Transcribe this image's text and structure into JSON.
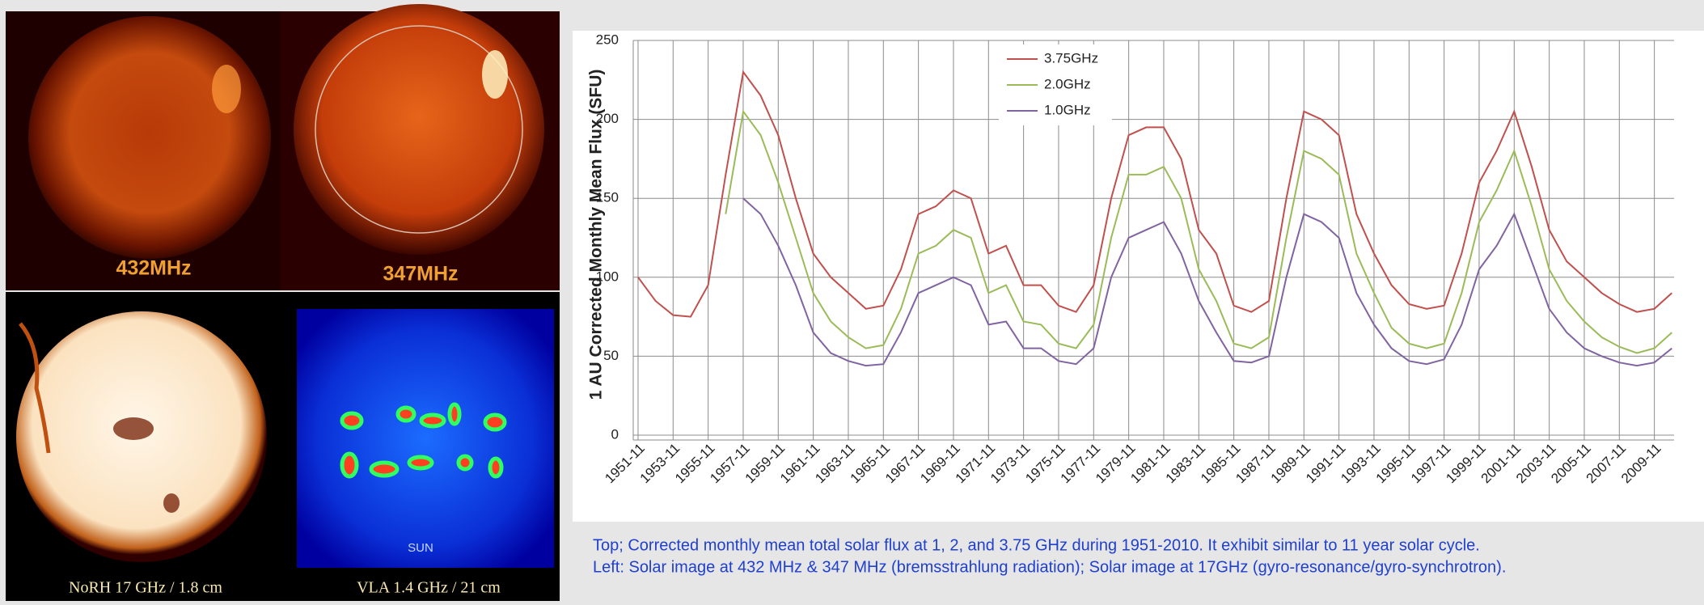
{
  "chart_data": {
    "type": "line",
    "y_label": "1 AU Corrected Monthly Mean Flux (SFU)",
    "x": [
      1951.875,
      1952.875,
      1953.875,
      1954.875,
      1955.875,
      1956.875,
      1957.875,
      1958.875,
      1959.875,
      1960.875,
      1961.875,
      1962.875,
      1963.875,
      1964.875,
      1965.875,
      1966.875,
      1967.875,
      1968.875,
      1969.875,
      1970.875,
      1971.875,
      1972.875,
      1973.875,
      1974.875,
      1975.875,
      1976.875,
      1977.875,
      1978.875,
      1979.875,
      1980.875,
      1981.875,
      1982.875,
      1983.875,
      1984.875,
      1985.875,
      1986.875,
      1987.875,
      1988.875,
      1989.875,
      1990.875,
      1991.875,
      1992.875,
      1993.875,
      1994.875,
      1995.875,
      1996.875,
      1997.875,
      1998.875,
      1999.875,
      2000.875,
      2001.875,
      2002.875,
      2003.875,
      2004.875,
      2005.875,
      2006.875,
      2007.875,
      2008.875,
      2009.875,
      2010.875
    ],
    "series": [
      {
        "name": "3.75GHz",
        "color": "#c0504d",
        "values": [
          100,
          85,
          76,
          75,
          95,
          165,
          230,
          215,
          190,
          150,
          115,
          100,
          90,
          80,
          82,
          105,
          140,
          145,
          155,
          150,
          115,
          120,
          95,
          95,
          82,
          78,
          95,
          150,
          190,
          195,
          195,
          175,
          130,
          115,
          82,
          78,
          85,
          150,
          205,
          200,
          190,
          140,
          115,
          95,
          83,
          80,
          82,
          115,
          160,
          180,
          205,
          170,
          130,
          110,
          100,
          90,
          83,
          78,
          80,
          90
        ]
      },
      {
        "name": "2.0GHz",
        "color": "#9bbb59",
        "values": [
          null,
          null,
          null,
          null,
          null,
          140,
          205,
          190,
          160,
          125,
          90,
          72,
          62,
          55,
          57,
          80,
          115,
          120,
          130,
          125,
          90,
          95,
          72,
          70,
          58,
          55,
          70,
          125,
          165,
          165,
          170,
          150,
          105,
          85,
          58,
          55,
          62,
          125,
          180,
          175,
          165,
          115,
          90,
          68,
          58,
          55,
          58,
          90,
          135,
          155,
          180,
          145,
          105,
          85,
          72,
          62,
          56,
          52,
          55,
          65
        ]
      },
      {
        "name": "1.0GHz",
        "color": "#8064a2",
        "values": [
          null,
          null,
          null,
          null,
          null,
          null,
          150,
          140,
          120,
          95,
          65,
          52,
          47,
          44,
          45,
          65,
          90,
          95,
          100,
          95,
          70,
          72,
          55,
          55,
          47,
          45,
          55,
          100,
          125,
          130,
          135,
          115,
          85,
          65,
          47,
          46,
          50,
          100,
          140,
          135,
          125,
          90,
          70,
          55,
          47,
          45,
          48,
          70,
          105,
          120,
          140,
          110,
          80,
          65,
          55,
          50,
          46,
          44,
          46,
          55
        ]
      }
    ],
    "xlim": [
      1951.6,
      2011.0
    ],
    "xticks": [
      {
        "value": 1951.875,
        "label": "1951-11"
      },
      {
        "value": 1953.875,
        "label": "1953-11"
      },
      {
        "value": 1955.875,
        "label": "1955-11"
      },
      {
        "value": 1957.875,
        "label": "1957-11"
      },
      {
        "value": 1959.875,
        "label": "1959-11"
      },
      {
        "value": 1961.875,
        "label": "1961-11"
      },
      {
        "value": 1963.875,
        "label": "1963-11"
      },
      {
        "value": 1965.875,
        "label": "1965-11"
      },
      {
        "value": 1967.875,
        "label": "1967-11"
      },
      {
        "value": 1969.875,
        "label": "1969-11"
      },
      {
        "value": 1971.875,
        "label": "1971-11"
      },
      {
        "value": 1973.875,
        "label": "1973-11"
      },
      {
        "value": 1975.875,
        "label": "1975-11"
      },
      {
        "value": 1977.875,
        "label": "1977-11"
      },
      {
        "value": 1979.875,
        "label": "1979-11"
      },
      {
        "value": 1981.875,
        "label": "1981-11"
      },
      {
        "value": 1983.875,
        "label": "1983-11"
      },
      {
        "value": 1985.875,
        "label": "1985-11"
      },
      {
        "value": 1987.875,
        "label": "1987-11"
      },
      {
        "value": 1989.875,
        "label": "1989-11"
      },
      {
        "value": 1991.875,
        "label": "1991-11"
      },
      {
        "value": 1993.875,
        "label": "1993-11"
      },
      {
        "value": 1995.875,
        "label": "1995-11"
      },
      {
        "value": 1997.875,
        "label": "1997-11"
      },
      {
        "value": 1999.875,
        "label": "1999-11"
      },
      {
        "value": 2001.875,
        "label": "2001-11"
      },
      {
        "value": 2003.875,
        "label": "2003-11"
      },
      {
        "value": 2005.875,
        "label": "2005-11"
      },
      {
        "value": 2007.875,
        "label": "2007-11"
      },
      {
        "value": 2009.875,
        "label": "2009-11"
      }
    ],
    "ylim": [
      0,
      250
    ],
    "yticks": [
      0,
      50,
      100,
      150,
      200,
      250
    ],
    "grid": true,
    "legend": "upper center"
  },
  "images": [
    {
      "label": "432MHz"
    },
    {
      "label": "347MHz"
    },
    {
      "label": "NoRH 17 GHz / 1.8 cm"
    },
    {
      "label": "VLA 1.4 GHz / 21 cm",
      "inset": "SUN"
    }
  ],
  "caption": [
    "Top; Corrected monthly mean total solar flux at 1, 2, and 3.75 GHz during 1951-2010. It exhibit similar to 11 year solar cycle.",
    "Left: Solar image at 432 MHz & 347 MHz (bremsstrahlung radiation); Solar image at 17GHz (gyro-resonance/gyro-synchrotron)."
  ]
}
